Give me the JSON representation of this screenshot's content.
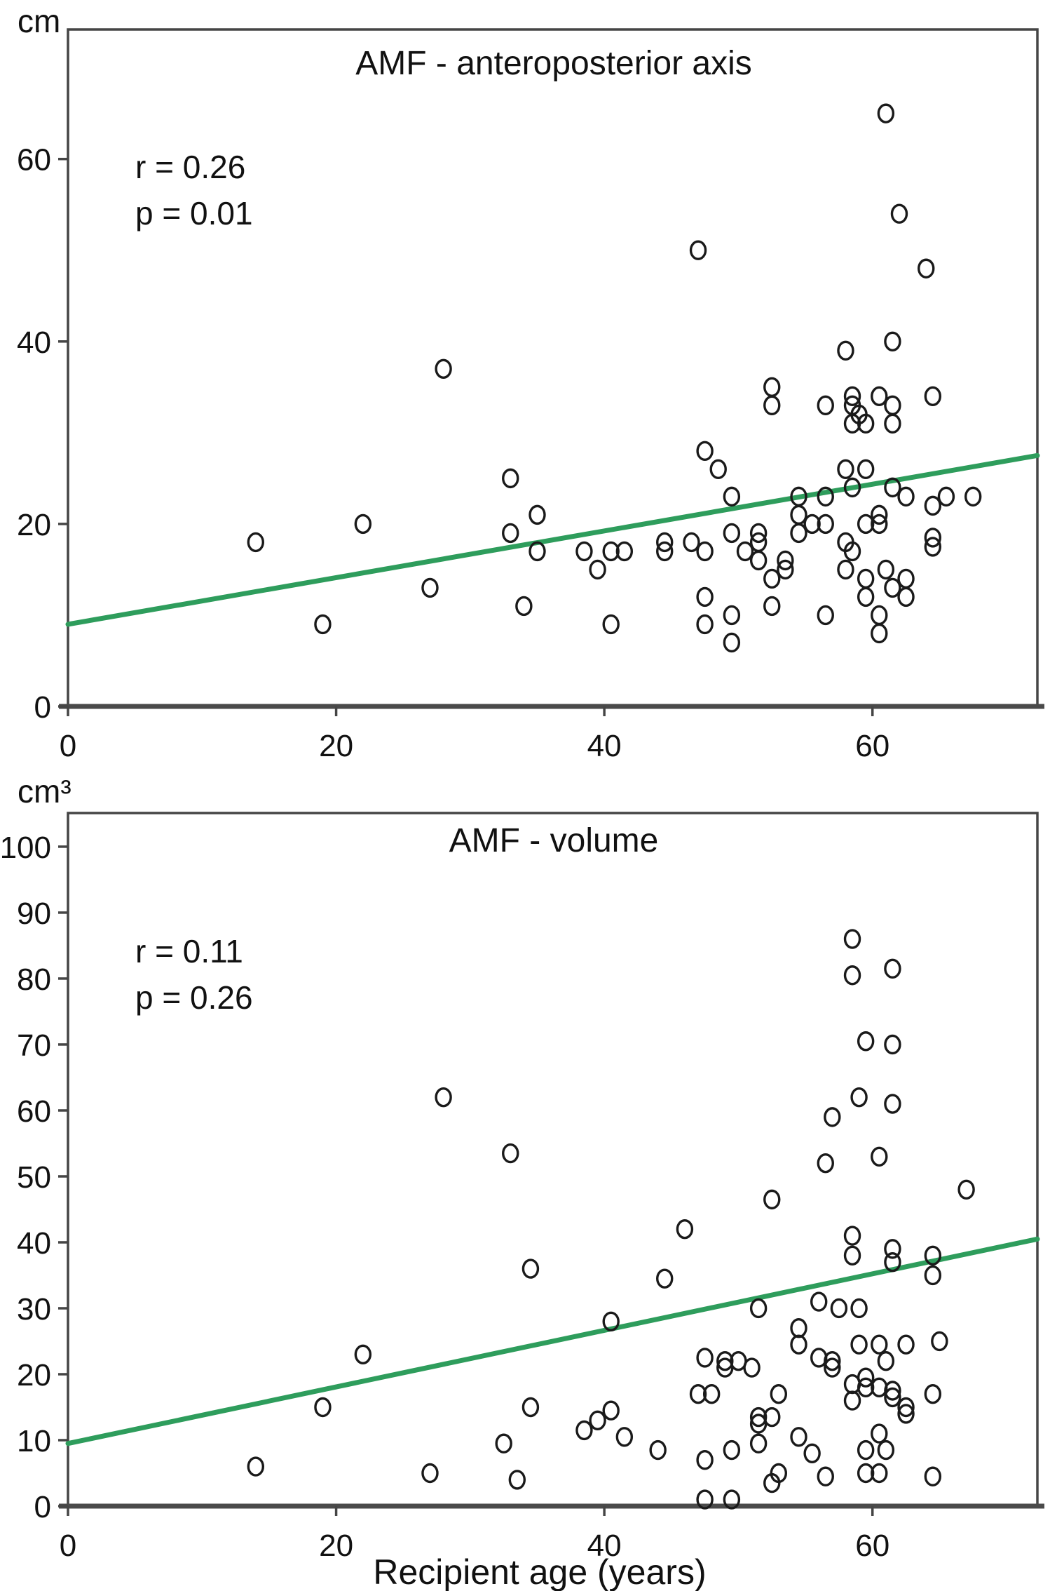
{
  "style": {
    "background": "#ffffff",
    "trend_color": "#2e9d5c",
    "marker_color": "#1a1a1a",
    "axis_color": "#454545",
    "baseline_color": "#4a4a4a",
    "text_color": "#111111"
  },
  "chart_data": [
    {
      "type": "scatter",
      "title": "AMF - anteroposterior axis",
      "ylabel": "cm",
      "xlabel": "",
      "annotations": [
        "r = 0.26",
        "p = 0.01"
      ],
      "xlim": [
        0,
        72.3
      ],
      "ylim": [
        0,
        74.2
      ],
      "x_ticks": [
        0,
        20,
        40,
        60
      ],
      "y_ticks": [
        0,
        20,
        40,
        60
      ],
      "grid": false,
      "marker": "open-circle",
      "trendline": {
        "x1": 0,
        "y1": 9,
        "x2": 72.3,
        "y2": 27.5
      },
      "points": [
        [
          14,
          18
        ],
        [
          19,
          9
        ],
        [
          22,
          20
        ],
        [
          27,
          13
        ],
        [
          28,
          37
        ],
        [
          33,
          25
        ],
        [
          33,
          19
        ],
        [
          34,
          11
        ],
        [
          35,
          21
        ],
        [
          35,
          17
        ],
        [
          38.5,
          17
        ],
        [
          39.5,
          15
        ],
        [
          40.5,
          17
        ],
        [
          41.5,
          17
        ],
        [
          40.5,
          9
        ],
        [
          44.5,
          18
        ],
        [
          44.5,
          17
        ],
        [
          46.5,
          18
        ],
        [
          47.5,
          17
        ],
        [
          47.5,
          12
        ],
        [
          47.5,
          9
        ],
        [
          47.5,
          28
        ],
        [
          48.5,
          26
        ],
        [
          47,
          50
        ],
        [
          49.5,
          23
        ],
        [
          49.5,
          19
        ],
        [
          49.5,
          10
        ],
        [
          49.5,
          7
        ],
        [
          50.5,
          17
        ],
        [
          51.5,
          19
        ],
        [
          51.5,
          18
        ],
        [
          51.5,
          16
        ],
        [
          52.5,
          35
        ],
        [
          52.5,
          33
        ],
        [
          52.5,
          14
        ],
        [
          52.5,
          11
        ],
        [
          53.5,
          16
        ],
        [
          53.5,
          15
        ],
        [
          54.5,
          23
        ],
        [
          54.5,
          21
        ],
        [
          54.5,
          19
        ],
        [
          55.5,
          20
        ],
        [
          56.5,
          33
        ],
        [
          56.5,
          23
        ],
        [
          56.5,
          20
        ],
        [
          56.5,
          10
        ],
        [
          58,
          39
        ],
        [
          58,
          26
        ],
        [
          58.5,
          34
        ],
        [
          58.5,
          33
        ],
        [
          58.5,
          31
        ],
        [
          58.5,
          24
        ],
        [
          58,
          18
        ],
        [
          58.5,
          17
        ],
        [
          58,
          15
        ],
        [
          59,
          32
        ],
        [
          59.5,
          31
        ],
        [
          59.5,
          26
        ],
        [
          59.5,
          20
        ],
        [
          59.5,
          14
        ],
        [
          59.5,
          12
        ],
        [
          60.5,
          34
        ],
        [
          60.5,
          21
        ],
        [
          60.5,
          20
        ],
        [
          60.5,
          10
        ],
        [
          60.5,
          8
        ],
        [
          61,
          65
        ],
        [
          61.5,
          40
        ],
        [
          61.5,
          33
        ],
        [
          61.5,
          31
        ],
        [
          61.5,
          24
        ],
        [
          61,
          15
        ],
        [
          61.5,
          13
        ],
        [
          62,
          54
        ],
        [
          62.5,
          23
        ],
        [
          62.5,
          14
        ],
        [
          62.5,
          12
        ],
        [
          64,
          48
        ],
        [
          64.5,
          34
        ],
        [
          64.5,
          22
        ],
        [
          64.5,
          18.5
        ],
        [
          64.5,
          17.5
        ],
        [
          65.5,
          23
        ],
        [
          67.5,
          23
        ]
      ]
    },
    {
      "type": "scatter",
      "title": "AMF - volume",
      "ylabel": "cm³",
      "xlabel": "Recipient age (years)",
      "annotations": [
        "r = 0.11",
        "p = 0.26"
      ],
      "xlim": [
        0,
        72.3
      ],
      "ylim": [
        0,
        105.1
      ],
      "x_ticks": [
        0,
        20,
        40,
        60
      ],
      "y_ticks": [
        0,
        10,
        20,
        30,
        40,
        50,
        60,
        70,
        80,
        90,
        100
      ],
      "grid": false,
      "marker": "open-circle",
      "trendline": {
        "x1": 0,
        "y1": 9.5,
        "x2": 72.3,
        "y2": 40.5
      },
      "points": [
        [
          14,
          6
        ],
        [
          19,
          15
        ],
        [
          22,
          23
        ],
        [
          27,
          5
        ],
        [
          28,
          62
        ],
        [
          32.5,
          9.5
        ],
        [
          33,
          53.5
        ],
        [
          33.5,
          4
        ],
        [
          34.5,
          36
        ],
        [
          34.5,
          15
        ],
        [
          38.5,
          11.5
        ],
        [
          39.5,
          13
        ],
        [
          40.5,
          14.5
        ],
        [
          40.5,
          28
        ],
        [
          41.5,
          10.5
        ],
        [
          44,
          8.5
        ],
        [
          44.5,
          34.5
        ],
        [
          46,
          42
        ],
        [
          47,
          17
        ],
        [
          48,
          17
        ],
        [
          47.5,
          22.5
        ],
        [
          47.5,
          7
        ],
        [
          47.5,
          1
        ],
        [
          49.5,
          1
        ],
        [
          49,
          22
        ],
        [
          49,
          21
        ],
        [
          49.5,
          8.5
        ],
        [
          50,
          22
        ],
        [
          51,
          21
        ],
        [
          51.5,
          30
        ],
        [
          51.5,
          13.5
        ],
        [
          51.5,
          12.5
        ],
        [
          51.5,
          9.5
        ],
        [
          52.5,
          46.5
        ],
        [
          52.5,
          13.5
        ],
        [
          52.5,
          3.5
        ],
        [
          53,
          17
        ],
        [
          53,
          5
        ],
        [
          54.5,
          27
        ],
        [
          54.5,
          24.5
        ],
        [
          54.5,
          10.5
        ],
        [
          55.5,
          8
        ],
        [
          56,
          31
        ],
        [
          56.5,
          4.5
        ],
        [
          56,
          22.5
        ],
        [
          57,
          22
        ],
        [
          57,
          21
        ],
        [
          57.5,
          30
        ],
        [
          58.5,
          41
        ],
        [
          58.5,
          38
        ],
        [
          58.5,
          18.5
        ],
        [
          58.5,
          16
        ],
        [
          59,
          30
        ],
        [
          59,
          24.5
        ],
        [
          60.5,
          24.5
        ],
        [
          59.5,
          19.5
        ],
        [
          59.5,
          18
        ],
        [
          60.5,
          18
        ],
        [
          59.5,
          8.5
        ],
        [
          59.5,
          5
        ],
        [
          60.5,
          5
        ],
        [
          60.5,
          11
        ],
        [
          61,
          22
        ],
        [
          61,
          8.5
        ],
        [
          61.5,
          39
        ],
        [
          61.5,
          37
        ],
        [
          61.5,
          17.5
        ],
        [
          61.5,
          16.5
        ],
        [
          62.5,
          24.5
        ],
        [
          62.5,
          15
        ],
        [
          62.5,
          14
        ],
        [
          64.5,
          38
        ],
        [
          64.5,
          35
        ],
        [
          64.5,
          17
        ],
        [
          64.5,
          4.5
        ],
        [
          65,
          25
        ],
        [
          67,
          48
        ],
        [
          58.5,
          86
        ],
        [
          58.5,
          80.5
        ],
        [
          61.5,
          81.5
        ],
        [
          59.5,
          70.5
        ],
        [
          61.5,
          70
        ],
        [
          59,
          62
        ],
        [
          61.5,
          61
        ],
        [
          57,
          59
        ],
        [
          56.5,
          52
        ],
        [
          60.5,
          53
        ]
      ]
    }
  ]
}
